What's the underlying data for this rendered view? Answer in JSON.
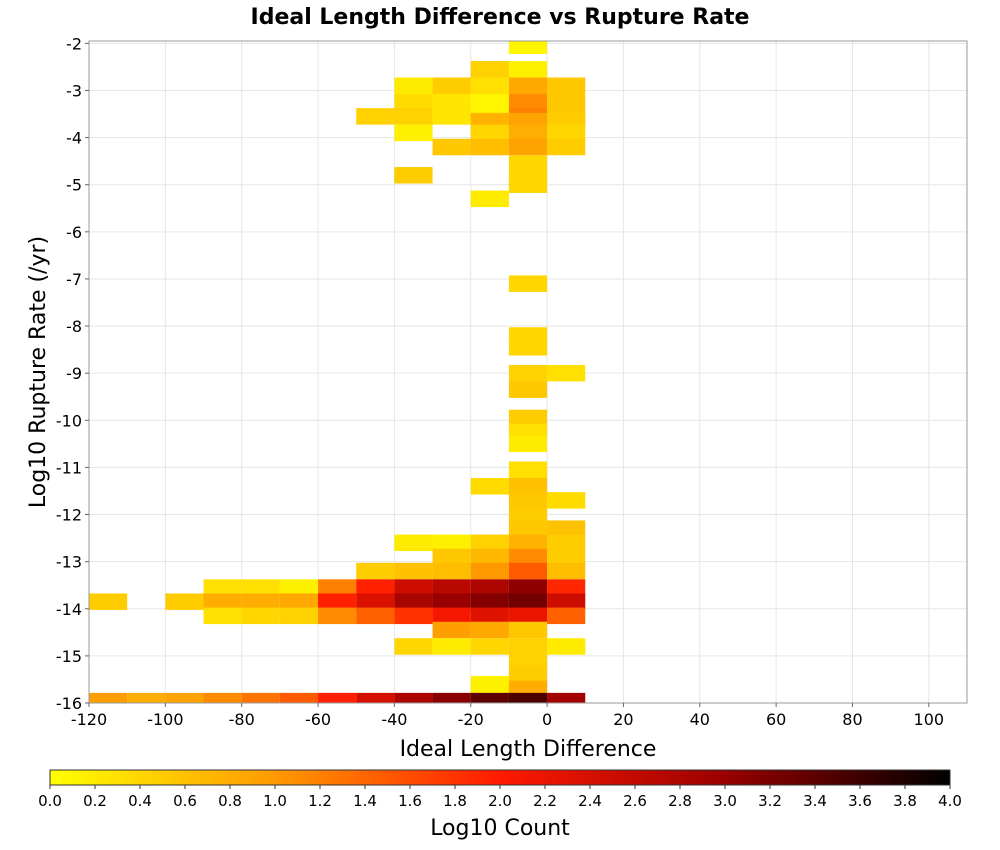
{
  "chart_data": {
    "type": "heatmap",
    "title": "Ideal Length Difference vs Rupture Rate",
    "xlabel": "Ideal Length Difference",
    "ylabel": "Log10 Rupture Rate (/yr)",
    "xlim": [
      -120,
      110
    ],
    "ylim": [
      -16,
      -1.95
    ],
    "x_ticks": [
      -120,
      -100,
      -80,
      -60,
      -40,
      -20,
      0,
      20,
      40,
      60,
      80,
      100
    ],
    "y_ticks": [
      -2,
      -3,
      -4,
      -5,
      -6,
      -7,
      -8,
      -9,
      -10,
      -11,
      -12,
      -13,
      -14,
      -15,
      -16
    ],
    "x_bin_width": 10,
    "y_bin_height": 0.35,
    "grid": true,
    "colorbar": {
      "label": "Log10 Count",
      "min": 0.0,
      "max": 4.0,
      "ticks": [
        "0.0",
        "0.2",
        "0.4",
        "0.6",
        "0.8",
        "1.0",
        "1.2",
        "1.4",
        "1.6",
        "1.8",
        "2.0",
        "2.2",
        "2.4",
        "2.6",
        "2.8",
        "3.0",
        "3.2",
        "3.4",
        "3.6",
        "3.8",
        "4.0"
      ],
      "colors": [
        "#ffff00",
        "#ff9900",
        "#ff1a00",
        "#990000",
        "#000000"
      ]
    },
    "cells": [
      {
        "x": -10,
        "y": -2.05,
        "v": 0.1
      },
      {
        "x": -20,
        "y": -2.55,
        "v": 0.45
      },
      {
        "x": -10,
        "y": -2.55,
        "v": 0.15
      },
      {
        "x": -40,
        "y": -2.9,
        "v": 0.2
      },
      {
        "x": -30,
        "y": -2.9,
        "v": 0.5
      },
      {
        "x": -20,
        "y": -2.9,
        "v": 0.3
      },
      {
        "x": -10,
        "y": -2.9,
        "v": 0.85
      },
      {
        "x": 0,
        "y": -2.9,
        "v": 0.55
      },
      {
        "x": -40,
        "y": -3.25,
        "v": 0.35
      },
      {
        "x": -30,
        "y": -3.25,
        "v": 0.25
      },
      {
        "x": -20,
        "y": -3.25,
        "v": 0.1
      },
      {
        "x": -10,
        "y": -3.25,
        "v": 1.1
      },
      {
        "x": 0,
        "y": -3.25,
        "v": 0.55
      },
      {
        "x": -50,
        "y": -3.55,
        "v": 0.45
      },
      {
        "x": -40,
        "y": -3.55,
        "v": 0.45
      },
      {
        "x": -30,
        "y": -3.55,
        "v": 0.25
      },
      {
        "x": -20,
        "y": -3.55,
        "v": 0.1
      },
      {
        "x": -10,
        "y": -3.55,
        "v": 1.2
      },
      {
        "x": 0,
        "y": -3.55,
        "v": 0.55
      },
      {
        "x": -20,
        "y": -3.65,
        "v": 0.75
      },
      {
        "x": -10,
        "y": -3.65,
        "v": 0.9
      },
      {
        "x": 0,
        "y": -3.65,
        "v": 0.5
      },
      {
        "x": -40,
        "y": -3.9,
        "v": 0.15
      },
      {
        "x": -20,
        "y": -3.9,
        "v": 0.4
      },
      {
        "x": -10,
        "y": -3.9,
        "v": 0.8
      },
      {
        "x": 0,
        "y": -3.9,
        "v": 0.4
      },
      {
        "x": -30,
        "y": -4.2,
        "v": 0.55
      },
      {
        "x": -20,
        "y": -4.2,
        "v": 0.65
      },
      {
        "x": -10,
        "y": -4.2,
        "v": 0.9
      },
      {
        "x": 0,
        "y": -4.2,
        "v": 0.5
      },
      {
        "x": -10,
        "y": -4.55,
        "v": 0.4
      },
      {
        "x": -40,
        "y": -4.8,
        "v": 0.5
      },
      {
        "x": -10,
        "y": -4.8,
        "v": 0.4
      },
      {
        "x": -10,
        "y": -5.0,
        "v": 0.4
      },
      {
        "x": -20,
        "y": -5.3,
        "v": 0.2
      },
      {
        "x": -10,
        "y": -7.1,
        "v": 0.4
      },
      {
        "x": -10,
        "y": -8.2,
        "v": 0.4
      },
      {
        "x": -10,
        "y": -8.45,
        "v": 0.4
      },
      {
        "x": -10,
        "y": -9.0,
        "v": 0.45
      },
      {
        "x": 0,
        "y": -9.0,
        "v": 0.3
      },
      {
        "x": -10,
        "y": -9.35,
        "v": 0.55
      },
      {
        "x": -10,
        "y": -9.95,
        "v": 0.5
      },
      {
        "x": -10,
        "y": -10.25,
        "v": 0.3
      },
      {
        "x": -10,
        "y": -10.5,
        "v": 0.2
      },
      {
        "x": -10,
        "y": -11.05,
        "v": 0.3
      },
      {
        "x": -20,
        "y": -11.4,
        "v": 0.35
      },
      {
        "x": -10,
        "y": -11.4,
        "v": 0.6
      },
      {
        "x": -10,
        "y": -11.7,
        "v": 0.55
      },
      {
        "x": 0,
        "y": -11.7,
        "v": 0.35
      },
      {
        "x": -10,
        "y": -12.0,
        "v": 0.5
      },
      {
        "x": -10,
        "y": -12.3,
        "v": 0.55
      },
      {
        "x": 0,
        "y": -12.3,
        "v": 0.6
      },
      {
        "x": -40,
        "y": -12.6,
        "v": 0.2
      },
      {
        "x": -30,
        "y": -12.6,
        "v": 0.15
      },
      {
        "x": -20,
        "y": -12.6,
        "v": 0.45
      },
      {
        "x": -10,
        "y": -12.6,
        "v": 0.75
      },
      {
        "x": 0,
        "y": -12.6,
        "v": 0.5
      },
      {
        "x": -30,
        "y": -12.9,
        "v": 0.55
      },
      {
        "x": -20,
        "y": -12.9,
        "v": 0.7
      },
      {
        "x": -10,
        "y": -12.9,
        "v": 1.1
      },
      {
        "x": 0,
        "y": -12.9,
        "v": 0.5
      },
      {
        "x": -50,
        "y": -13.2,
        "v": 0.5
      },
      {
        "x": -40,
        "y": -13.2,
        "v": 0.6
      },
      {
        "x": -30,
        "y": -13.2,
        "v": 0.65
      },
      {
        "x": -20,
        "y": -13.2,
        "v": 1.0
      },
      {
        "x": -10,
        "y": -13.2,
        "v": 1.5
      },
      {
        "x": 0,
        "y": -13.2,
        "v": 0.65
      },
      {
        "x": -90,
        "y": -13.55,
        "v": 0.3
      },
      {
        "x": -80,
        "y": -13.55,
        "v": 0.3
      },
      {
        "x": -70,
        "y": -13.55,
        "v": 0.15
      },
      {
        "x": -60,
        "y": -13.55,
        "v": 1.2
      },
      {
        "x": -50,
        "y": -13.55,
        "v": 1.95
      },
      {
        "x": -40,
        "y": -13.55,
        "v": 2.5
      },
      {
        "x": -30,
        "y": -13.55,
        "v": 2.7
      },
      {
        "x": -20,
        "y": -13.55,
        "v": 2.8
      },
      {
        "x": -10,
        "y": -13.55,
        "v": 3.05
      },
      {
        "x": 0,
        "y": -13.55,
        "v": 1.9
      },
      {
        "x": -120,
        "y": -13.85,
        "v": 0.5
      },
      {
        "x": -100,
        "y": -13.85,
        "v": 0.5
      },
      {
        "x": -90,
        "y": -13.85,
        "v": 0.8
      },
      {
        "x": -80,
        "y": -13.85,
        "v": 0.8
      },
      {
        "x": -70,
        "y": -13.85,
        "v": 0.85
      },
      {
        "x": -60,
        "y": -13.85,
        "v": 1.95
      },
      {
        "x": -50,
        "y": -13.85,
        "v": 2.35
      },
      {
        "x": -40,
        "y": -13.85,
        "v": 2.85
      },
      {
        "x": -30,
        "y": -13.85,
        "v": 3.0
      },
      {
        "x": -20,
        "y": -13.85,
        "v": 3.15
      },
      {
        "x": -10,
        "y": -13.85,
        "v": 3.25
      },
      {
        "x": 0,
        "y": -13.85,
        "v": 2.5
      },
      {
        "x": -90,
        "y": -14.15,
        "v": 0.3
      },
      {
        "x": -80,
        "y": -14.15,
        "v": 0.4
      },
      {
        "x": -70,
        "y": -14.15,
        "v": 0.45
      },
      {
        "x": -60,
        "y": -14.15,
        "v": 1.1
      },
      {
        "x": -50,
        "y": -14.15,
        "v": 1.45
      },
      {
        "x": -40,
        "y": -14.15,
        "v": 1.8
      },
      {
        "x": -30,
        "y": -14.15,
        "v": 2.1
      },
      {
        "x": -20,
        "y": -14.15,
        "v": 2.3
      },
      {
        "x": -10,
        "y": -14.15,
        "v": 2.2
      },
      {
        "x": 0,
        "y": -14.15,
        "v": 1.45
      },
      {
        "x": -30,
        "y": -14.45,
        "v": 0.95
      },
      {
        "x": -20,
        "y": -14.45,
        "v": 0.85
      },
      {
        "x": -10,
        "y": -14.45,
        "v": 0.55
      },
      {
        "x": -40,
        "y": -14.8,
        "v": 0.4
      },
      {
        "x": -30,
        "y": -14.8,
        "v": 0.2
      },
      {
        "x": -20,
        "y": -14.8,
        "v": 0.4
      },
      {
        "x": -10,
        "y": -14.8,
        "v": 0.45
      },
      {
        "x": 0,
        "y": -14.8,
        "v": 0.2
      },
      {
        "x": -10,
        "y": -15.1,
        "v": 0.45
      },
      {
        "x": -10,
        "y": -15.4,
        "v": 0.5
      },
      {
        "x": -20,
        "y": -15.6,
        "v": 0.15
      },
      {
        "x": -10,
        "y": -15.7,
        "v": 0.8
      },
      {
        "x": -20,
        "y": -15.85,
        "v": 0.15
      },
      {
        "x": -120,
        "y": -15.96,
        "v": 0.95
      },
      {
        "x": -110,
        "y": -15.96,
        "v": 0.8
      },
      {
        "x": -100,
        "y": -15.96,
        "v": 0.9
      },
      {
        "x": -90,
        "y": -15.96,
        "v": 1.1
      },
      {
        "x": -80,
        "y": -15.96,
        "v": 1.3
      },
      {
        "x": -70,
        "y": -15.96,
        "v": 1.5
      },
      {
        "x": -60,
        "y": -15.96,
        "v": 1.95
      },
      {
        "x": -50,
        "y": -15.96,
        "v": 2.4
      },
      {
        "x": -40,
        "y": -15.96,
        "v": 2.8
      },
      {
        "x": -30,
        "y": -15.96,
        "v": 3.1
      },
      {
        "x": -20,
        "y": -15.96,
        "v": 3.4
      },
      {
        "x": -10,
        "y": -15.96,
        "v": 3.5
      },
      {
        "x": 0,
        "y": -15.96,
        "v": 2.9
      }
    ]
  }
}
